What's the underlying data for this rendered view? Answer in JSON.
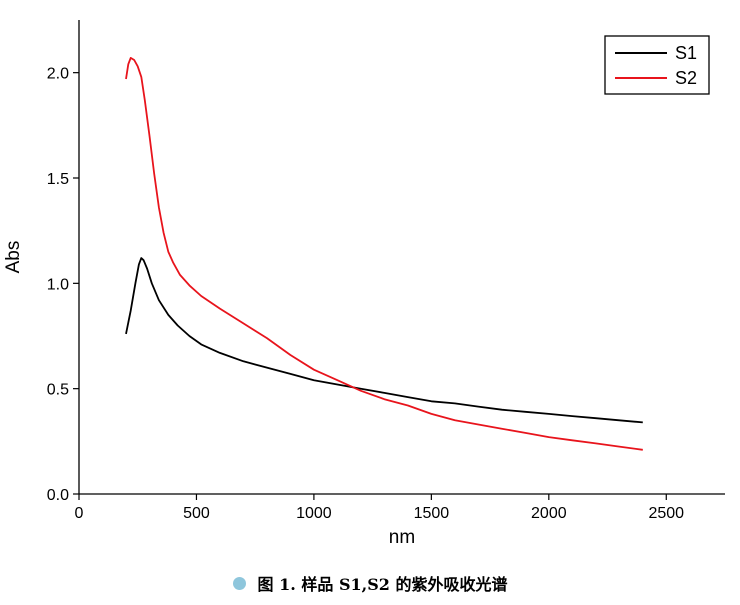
{
  "chart_data": {
    "type": "line",
    "xlabel": "nm",
    "ylabel": "Abs",
    "xlim": [
      0,
      2750
    ],
    "ylim": [
      0,
      2.25
    ],
    "xticks": [
      0,
      500,
      1000,
      1500,
      2000,
      2500
    ],
    "yticks": [
      0.0,
      0.5,
      1.0,
      1.5,
      2.0
    ],
    "xtick_labels": [
      "0",
      "500",
      "1000",
      "1500",
      "2000",
      "2500"
    ],
    "ytick_labels": [
      "0.0",
      "0.5",
      "1.0",
      "1.5",
      "2.0"
    ],
    "legend_position": "top-right",
    "grid": false,
    "series": [
      {
        "name": "S1",
        "color": "#000000",
        "x": [
          200,
          220,
          240,
          255,
          265,
          275,
          290,
          310,
          340,
          380,
          420,
          470,
          520,
          600,
          700,
          800,
          900,
          1000,
          1100,
          1200,
          1300,
          1400,
          1500,
          1600,
          1700,
          1800,
          1900,
          2000,
          2100,
          2200,
          2300,
          2400
        ],
        "y": [
          0.76,
          0.87,
          1.0,
          1.09,
          1.12,
          1.11,
          1.07,
          1.0,
          0.92,
          0.85,
          0.8,
          0.75,
          0.71,
          0.67,
          0.63,
          0.6,
          0.57,
          0.54,
          0.52,
          0.5,
          0.48,
          0.46,
          0.44,
          0.43,
          0.415,
          0.4,
          0.39,
          0.38,
          0.37,
          0.36,
          0.35,
          0.34
        ]
      },
      {
        "name": "S2",
        "color": "#e8141c",
        "x": [
          200,
          210,
          220,
          235,
          250,
          265,
          280,
          300,
          320,
          340,
          360,
          380,
          400,
          430,
          470,
          520,
          600,
          700,
          800,
          900,
          1000,
          1100,
          1200,
          1300,
          1400,
          1500,
          1600,
          1700,
          1800,
          1900,
          2000,
          2100,
          2200,
          2300,
          2400
        ],
        "y": [
          1.97,
          2.04,
          2.07,
          2.06,
          2.03,
          1.98,
          1.87,
          1.7,
          1.52,
          1.36,
          1.24,
          1.15,
          1.1,
          1.04,
          0.99,
          0.94,
          0.88,
          0.81,
          0.74,
          0.66,
          0.59,
          0.54,
          0.49,
          0.45,
          0.42,
          0.38,
          0.35,
          0.33,
          0.31,
          0.29,
          0.27,
          0.255,
          0.24,
          0.225,
          0.21
        ]
      }
    ]
  },
  "caption": {
    "text": "图 1.  样品 S1,S2 的紫外吸收光谱",
    "bullet_color": "#8ec6dc"
  }
}
